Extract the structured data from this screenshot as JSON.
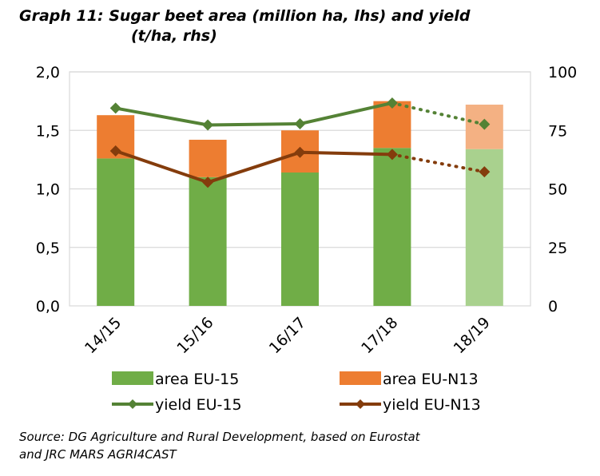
{
  "title": {
    "label": "Graph 11:",
    "line1": "Sugar beet area (million ha, lhs) and yield",
    "line2": "(t/ha, rhs)"
  },
  "source": {
    "line1": "Source: DG Agriculture and Rural Development, based on Eurostat",
    "line2": "and JRC MARS AGRI4CAST"
  },
  "colors": {
    "area_eu15": "#70AD47",
    "area_eu15_forecast": "#A9D18E",
    "area_eun13": "#ED7D31",
    "area_eun13_forecast": "#F4B183",
    "yield_eu15": "#548235",
    "yield_eun13": "#843C0C",
    "grid": "#D9D9D9"
  },
  "chart_data": {
    "type": "bar",
    "categories": [
      "14/15",
      "15/16",
      "16/17",
      "17/18",
      "18/19"
    ],
    "stacked": true,
    "forecast_from_index": 4,
    "left_axis": {
      "ylim": [
        0,
        2.0
      ],
      "ticks": [
        "0,0",
        "0,5",
        "1,0",
        "1,5",
        "2,0"
      ]
    },
    "right_axis": {
      "ylim": [
        0,
        100
      ],
      "ticks": [
        "0",
        "25",
        "50",
        "75",
        "100"
      ]
    },
    "grid": true,
    "legend_position": "bottom",
    "series": [
      {
        "name": "area EU-15",
        "kind": "bar",
        "axis": "left",
        "values": [
          1.26,
          1.1,
          1.14,
          1.35,
          1.34
        ]
      },
      {
        "name": "area EU-N13",
        "kind": "bar",
        "axis": "left",
        "values": [
          0.37,
          0.32,
          0.36,
          0.4,
          0.38
        ]
      },
      {
        "name": "yield EU-15",
        "kind": "line",
        "axis": "right",
        "marker": "diamond",
        "values": [
          84.5,
          77.3,
          77.8,
          86.7,
          77.6
        ]
      },
      {
        "name": "yield EU-N13",
        "kind": "line",
        "axis": "right",
        "marker": "diamond",
        "values": [
          66.2,
          52.8,
          65.6,
          64.7,
          57.3
        ]
      }
    ]
  }
}
